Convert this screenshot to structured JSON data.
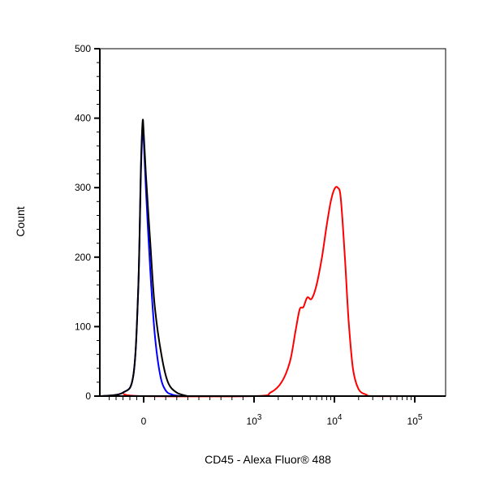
{
  "chart_data": {
    "type": "line",
    "xlabel": "CD45 - Alexa Fluor® 488",
    "ylabel": "Count",
    "x_scale": "biexponential",
    "ylim": [
      0,
      500
    ],
    "grid": false,
    "legend": "none",
    "y_ticks": [
      {
        "value": 0,
        "label": "0"
      },
      {
        "value": 100,
        "label": "100"
      },
      {
        "value": 200,
        "label": "200"
      },
      {
        "value": 300,
        "label": "300"
      },
      {
        "value": 400,
        "label": "400"
      },
      {
        "value": 500,
        "label": "500"
      }
    ],
    "x_ticks": [
      {
        "value": 0,
        "base": "0",
        "exp": ""
      },
      {
        "value": 1000,
        "base": "10",
        "exp": "3"
      },
      {
        "value": 10000,
        "base": "10",
        "exp": "4"
      },
      {
        "value": 100000,
        "base": "10",
        "exp": "5"
      }
    ],
    "series": [
      {
        "color": "#000000",
        "x": [
          -600,
          -300,
          -150,
          -80,
          -40,
          -15,
          0,
          20,
          60,
          100,
          160,
          220,
          300,
          400
        ],
        "y": [
          0,
          5,
          30,
          150,
          330,
          395,
          380,
          320,
          220,
          130,
          60,
          20,
          5,
          0
        ]
      },
      {
        "color": "#0000ff",
        "x": [
          -600,
          -300,
          -150,
          -80,
          -40,
          -15,
          0,
          20,
          60,
          100,
          150,
          200,
          260,
          330
        ],
        "y": [
          0,
          5,
          30,
          150,
          320,
          385,
          370,
          300,
          180,
          90,
          30,
          8,
          2,
          0
        ]
      },
      {
        "color": "#ff0000",
        "x": [
          -300,
          0,
          1000,
          1600,
          2200,
          2800,
          3300,
          3700,
          4100,
          4600,
          5200,
          6000,
          7000,
          8000,
          9000,
          10000,
          11000,
          12000,
          13500,
          15000,
          17000,
          20000,
          25000,
          30000,
          100000,
          150000
        ],
        "y": [
          3,
          0,
          0,
          5,
          20,
          50,
          95,
          125,
          128,
          142,
          140,
          160,
          200,
          245,
          280,
          298,
          300,
          285,
          200,
          110,
          40,
          10,
          2,
          0,
          0,
          0
        ]
      }
    ]
  }
}
